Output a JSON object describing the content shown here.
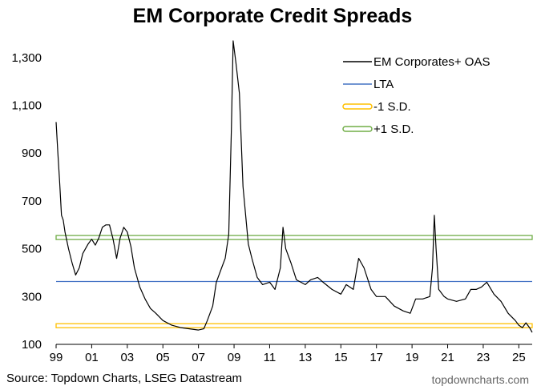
{
  "chart_data": {
    "type": "line",
    "title": "EM Corporate Credit Spreads",
    "xlabel": "",
    "ylabel": "",
    "xlim": [
      1999.0,
      2025.75
    ],
    "ylim": [
      100,
      1400
    ],
    "y_ticks": [
      100,
      300,
      500,
      700,
      900,
      1100,
      1300
    ],
    "y_tick_labels": [
      "100",
      "300",
      "500",
      "700",
      "900",
      "1,100",
      "1,300"
    ],
    "x_ticks": [
      1999,
      2001,
      2003,
      2005,
      2007,
      2009,
      2011,
      2013,
      2015,
      2017,
      2019,
      2021,
      2023,
      2025
    ],
    "x_tick_labels": [
      "99",
      "01",
      "03",
      "05",
      "07",
      "09",
      "11",
      "13",
      "15",
      "17",
      "19",
      "21",
      "23",
      "25"
    ],
    "legend_position": "top-right",
    "series": [
      {
        "name": "EM Corporates+ OAS",
        "color": "#000000",
        "x": [
          1999.0,
          1999.1,
          1999.2,
          1999.3,
          1999.4,
          1999.5,
          1999.7,
          1999.9,
          2000.1,
          2000.3,
          2000.5,
          2000.8,
          2001.0,
          2001.2,
          2001.4,
          2001.6,
          2001.8,
          2002.0,
          2002.2,
          2002.4,
          2002.6,
          2002.8,
          2003.0,
          2003.2,
          2003.4,
          2003.7,
          2004.0,
          2004.3,
          2004.6,
          2005.0,
          2005.5,
          2006.0,
          2006.5,
          2007.0,
          2007.3,
          2007.5,
          2007.8,
          2008.0,
          2008.3,
          2008.5,
          2008.7,
          2008.85,
          2008.95,
          2009.1,
          2009.3,
          2009.5,
          2009.8,
          2010.0,
          2010.3,
          2010.6,
          2011.0,
          2011.3,
          2011.6,
          2011.75,
          2011.9,
          2012.2,
          2012.5,
          2013.0,
          2013.3,
          2013.7,
          2014.0,
          2014.5,
          2015.0,
          2015.3,
          2015.7,
          2016.0,
          2016.3,
          2016.7,
          2017.0,
          2017.5,
          2018.0,
          2018.5,
          2018.9,
          2019.2,
          2019.6,
          2020.0,
          2020.15,
          2020.25,
          2020.35,
          2020.5,
          2020.8,
          2021.0,
          2021.5,
          2022.0,
          2022.3,
          2022.6,
          2022.9,
          2023.2,
          2023.6,
          2024.0,
          2024.4,
          2024.8,
          2025.0,
          2025.2,
          2025.4,
          2025.6,
          2025.75
        ],
        "values": [
          1030,
          900,
          780,
          640,
          620,
          570,
          500,
          440,
          390,
          420,
          480,
          520,
          540,
          515,
          545,
          590,
          600,
          600,
          540,
          460,
          545,
          590,
          570,
          510,
          420,
          340,
          290,
          250,
          230,
          200,
          180,
          170,
          165,
          160,
          165,
          200,
          260,
          360,
          420,
          460,
          560,
          1000,
          1370,
          1280,
          1150,
          760,
          520,
          460,
          380,
          350,
          360,
          330,
          420,
          590,
          500,
          440,
          370,
          350,
          370,
          380,
          360,
          330,
          310,
          350,
          330,
          460,
          420,
          330,
          300,
          300,
          260,
          240,
          230,
          290,
          290,
          300,
          420,
          640,
          500,
          330,
          300,
          290,
          280,
          290,
          330,
          330,
          340,
          360,
          310,
          280,
          230,
          200,
          180,
          170,
          190,
          170,
          150
        ]
      },
      {
        "name": "LTA",
        "color": "#4472C4",
        "y": 363
      },
      {
        "name": "-1 S.D.",
        "color": "#FFC000",
        "y": 178
      },
      {
        "name": "+1 S.D.",
        "color": "#70AD47",
        "y": 547
      }
    ]
  },
  "footer": {
    "source": "Source: Topdown Charts, LSEG Datastream",
    "brand": "topdowncharts.com"
  }
}
